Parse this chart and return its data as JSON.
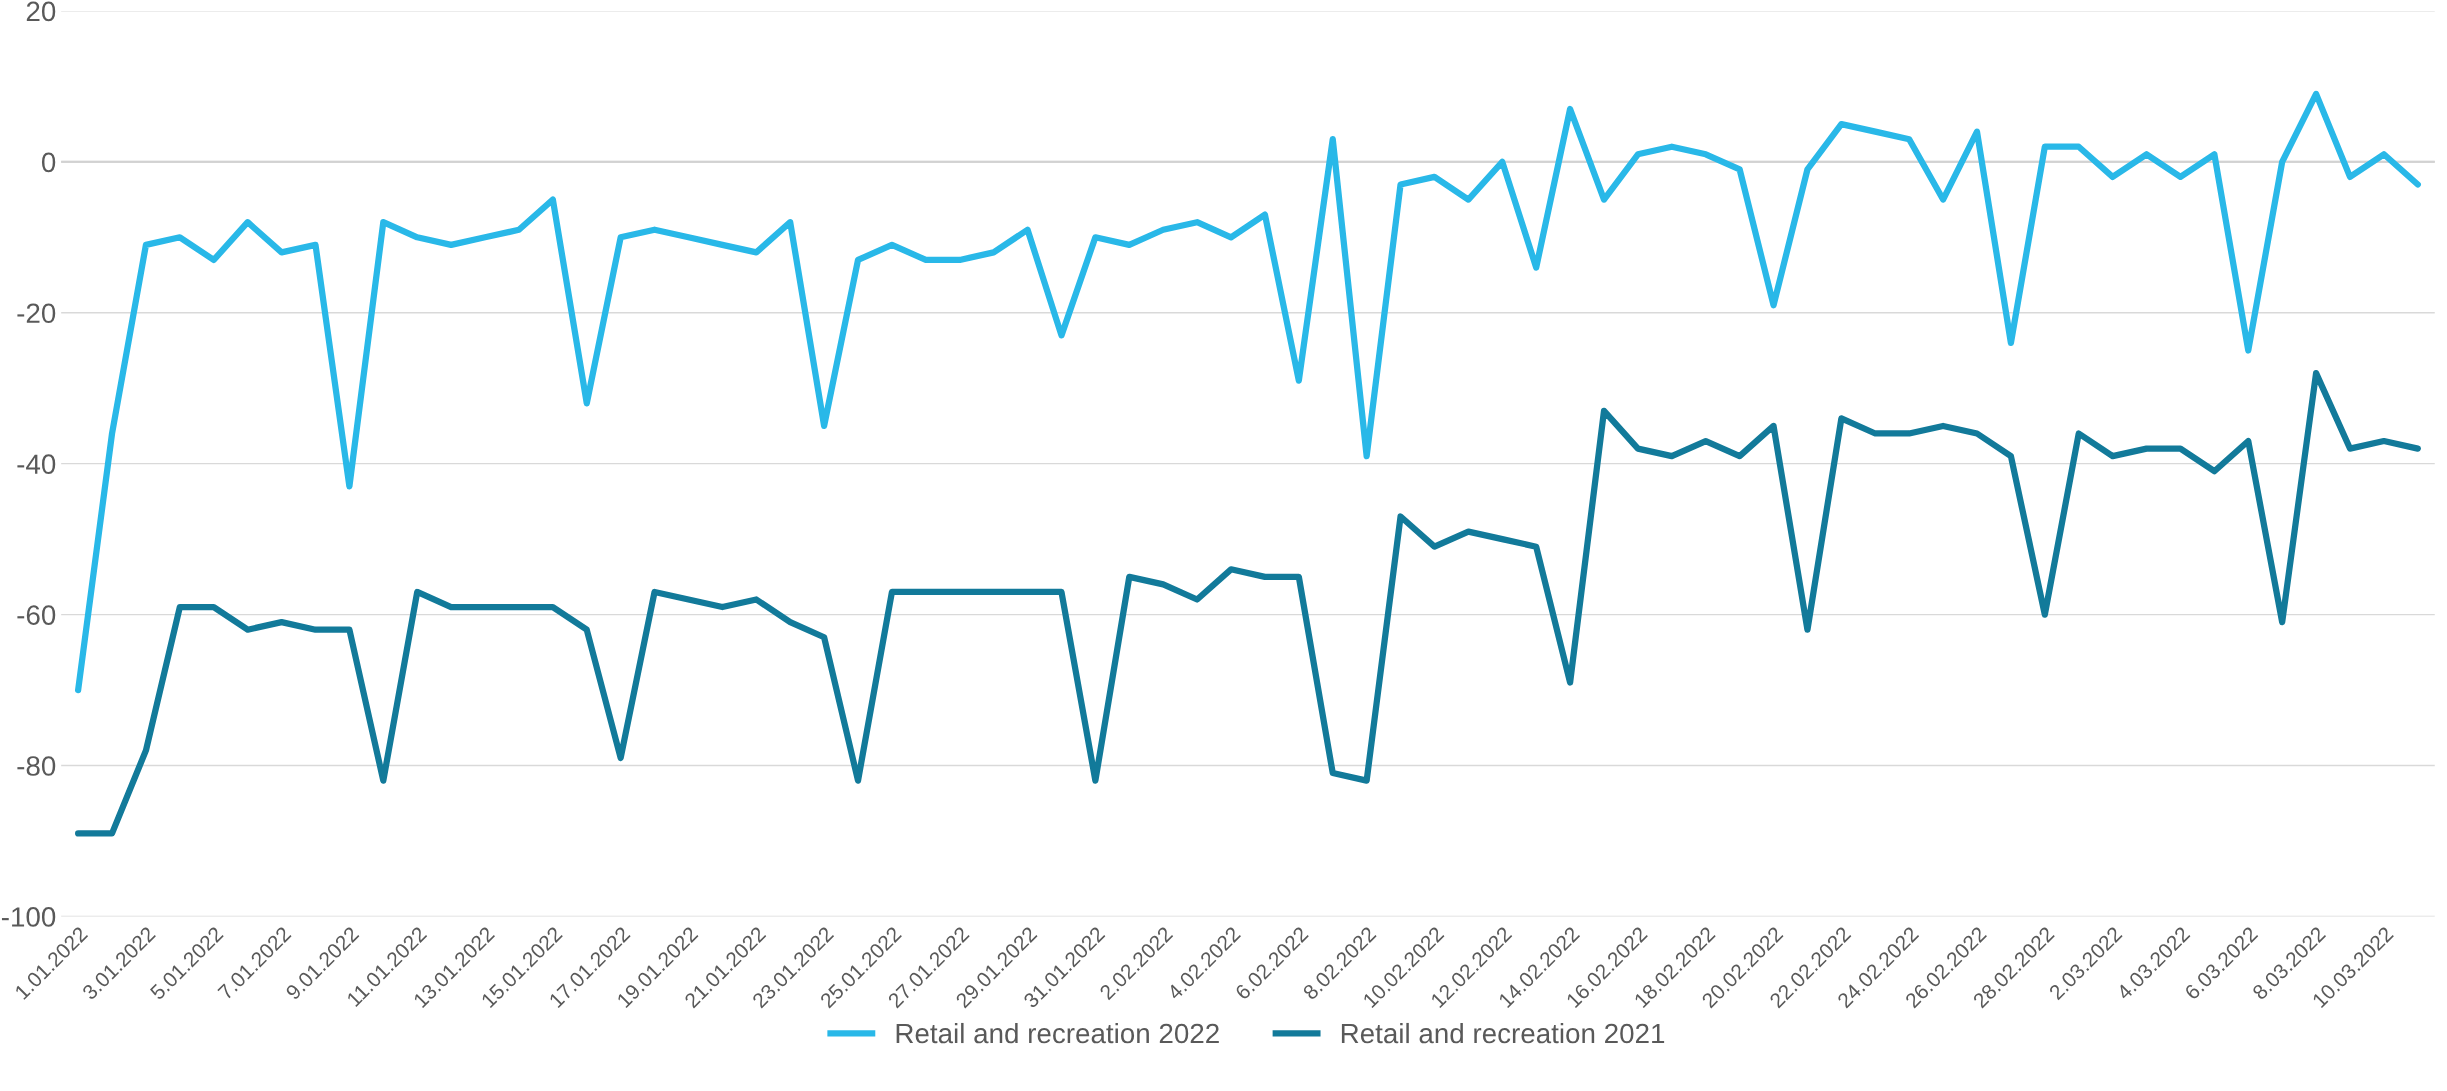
{
  "chart_data": {
    "type": "line",
    "categories": [
      "1.01.2022",
      null,
      "3.01.2022",
      null,
      "5.01.2022",
      null,
      "7.01.2022",
      null,
      "9.01.2022",
      null,
      "11.01.2022",
      null,
      "13.01.2022",
      null,
      "15.01.2022",
      null,
      "17.01.2022",
      null,
      "19.01.2022",
      null,
      "21.01.2022",
      null,
      "23.01.2022",
      null,
      "25.01.2022",
      null,
      "27.01.2022",
      null,
      "29.01.2022",
      null,
      "31.01.2022",
      null,
      "2.02.2022",
      null,
      "4.02.2022",
      null,
      "6.02.2022",
      null,
      "8.02.2022",
      null,
      "10.02.2022",
      null,
      "12.02.2022",
      null,
      "14.02.2022",
      null,
      "16.02.2022",
      null,
      "18.02.2022",
      null,
      "20.02.2022",
      null,
      "22.02.2022",
      null,
      "24.02.2022",
      null,
      "26.02.2022",
      null,
      "28.02.2022",
      null,
      "2.03.2022",
      null,
      "4.03.2022",
      null,
      "6.03.2022",
      null,
      "8.03.2022",
      null,
      "10.03.2022",
      null
    ],
    "series": [
      {
        "name": "Retail and recreation 2022",
        "color": "#29b8e8",
        "values": [
          -70,
          -36,
          -11,
          -10,
          -13,
          -8,
          -12,
          -11,
          -43,
          -8,
          -10,
          -11,
          -10,
          -9,
          -5,
          -32,
          -10,
          -9,
          -10,
          -11,
          -12,
          -8,
          -35,
          -13,
          -11,
          -13,
          -13,
          -12,
          -9,
          -23,
          -10,
          -11,
          -9,
          -8,
          -10,
          -7,
          -29,
          3,
          -39,
          -3,
          -2,
          -5,
          0,
          -14,
          7,
          -5,
          1,
          2,
          1,
          -1,
          -19,
          -1,
          5,
          4,
          3,
          -5,
          4,
          -24,
          2,
          2,
          -2,
          1,
          -2,
          1,
          -25,
          0,
          9,
          -2,
          1,
          -3
        ]
      },
      {
        "name": "Retail and recreation 2021",
        "color": "#127a9a",
        "values": [
          -89,
          -89,
          -78,
          -59,
          -59,
          -62,
          -61,
          -62,
          -62,
          -82,
          -57,
          -59,
          -59,
          -59,
          -59,
          -62,
          -79,
          -57,
          -58,
          -59,
          -58,
          -61,
          -63,
          -82,
          -57,
          -57,
          -57,
          -57,
          -57,
          -57,
          -82,
          -55,
          -56,
          -58,
          -54,
          -55,
          -55,
          -81,
          -82,
          -47,
          -51,
          -49,
          -50,
          -51,
          -69,
          -33,
          -38,
          -39,
          -37,
          -39,
          -35,
          -62,
          -34,
          -36,
          -36,
          -35,
          -36,
          -39,
          -60,
          -36,
          -39,
          -38,
          -38,
          -41,
          -37,
          -61,
          -28,
          -38,
          -37,
          -38
        ]
      }
    ],
    "ylim": [
      -100,
      20
    ],
    "yticks": [
      -100,
      -80,
      -60,
      -40,
      -20,
      0,
      20
    ],
    "grid": "y",
    "legend": "bottom",
    "marker": "none",
    "line_style": "solid"
  }
}
